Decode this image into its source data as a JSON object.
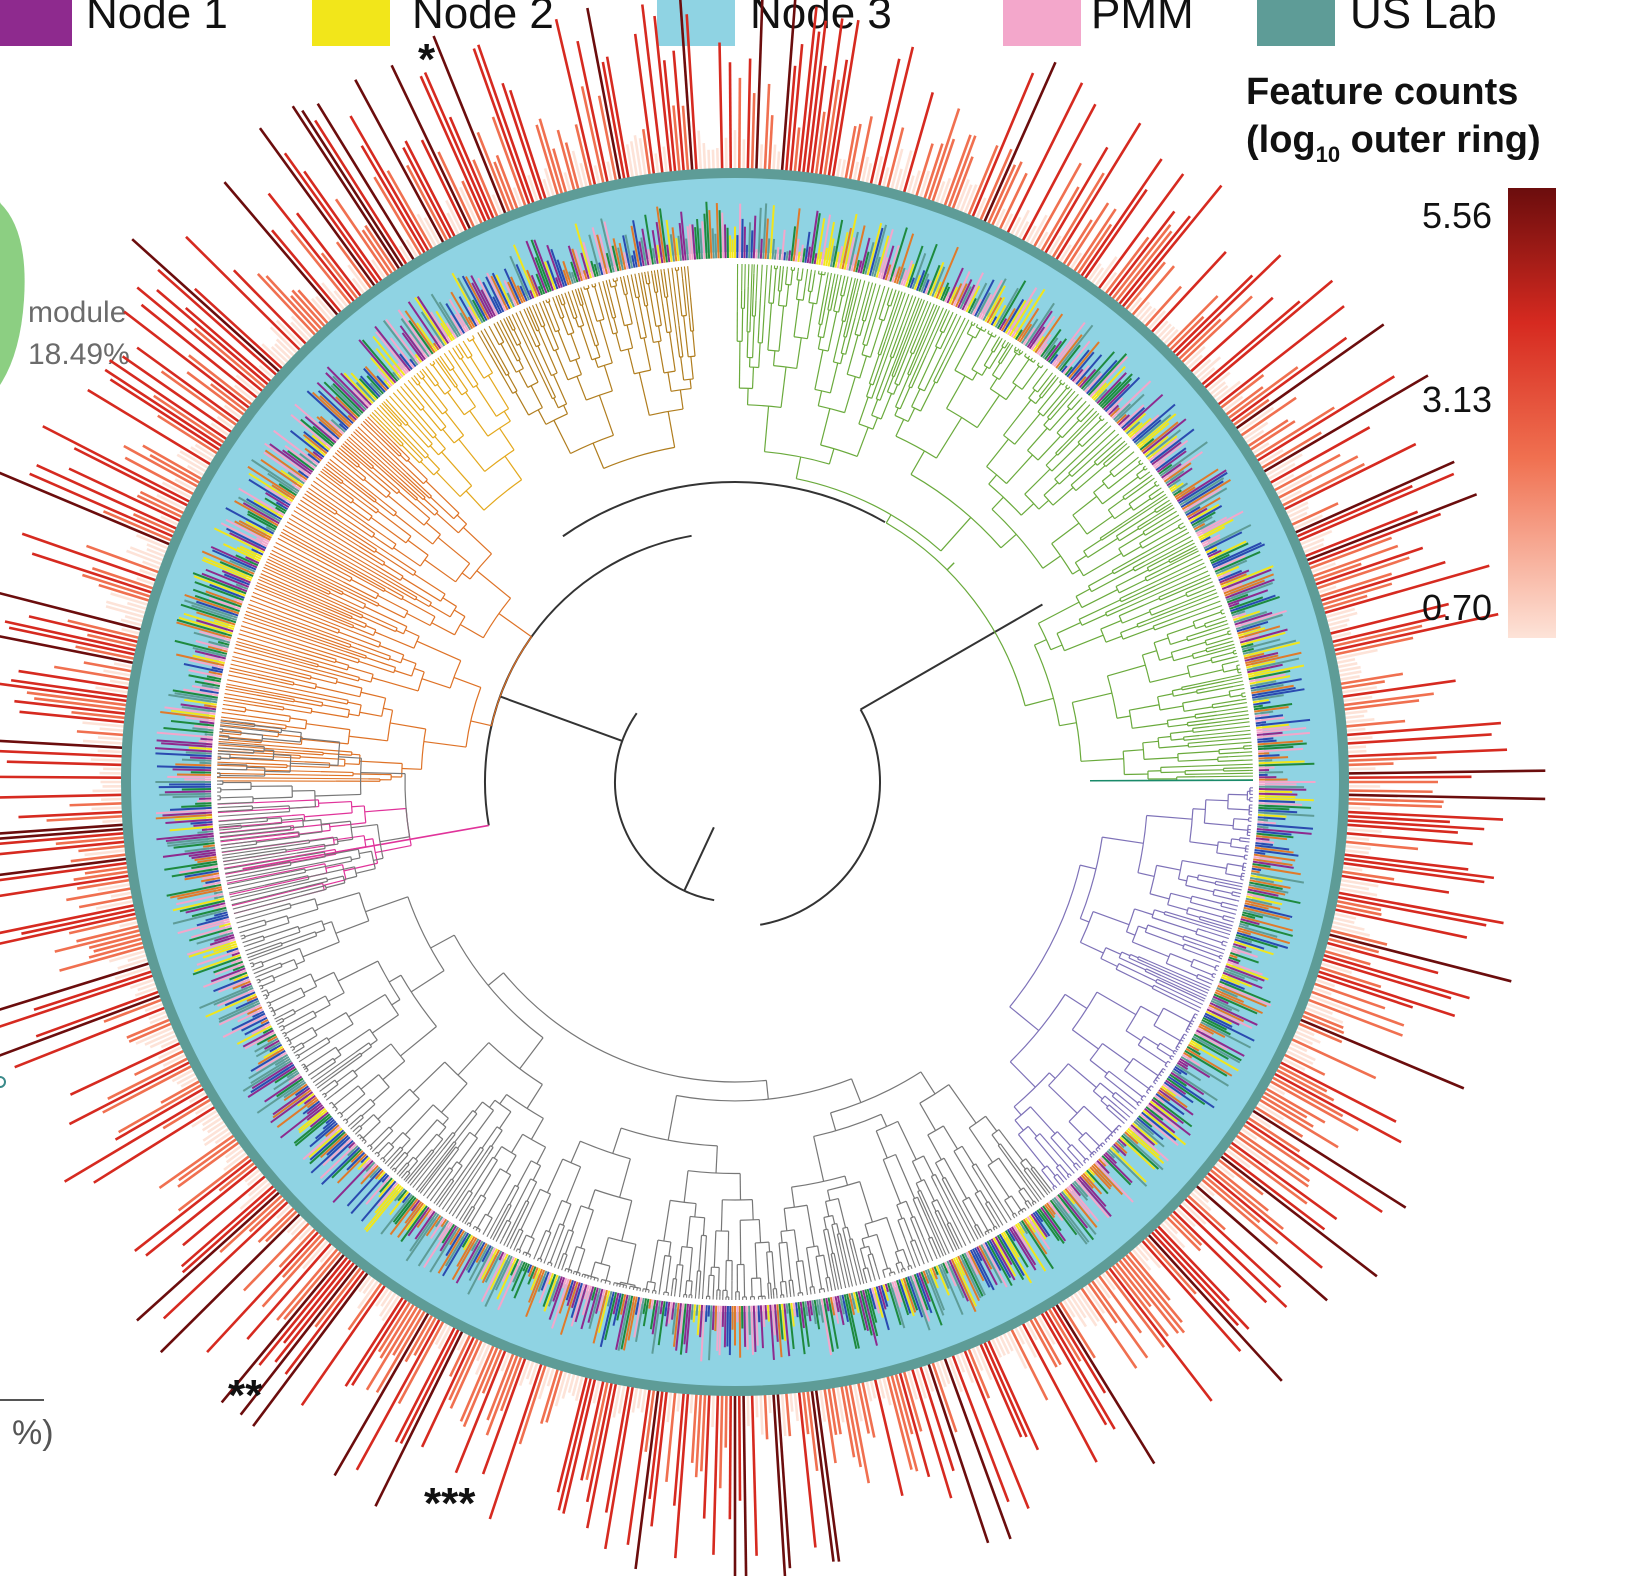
{
  "legend": {
    "items": [
      {
        "label": "Node 1",
        "color": "#8e2a8e"
      },
      {
        "label": "Node 2",
        "color": "#f2e61a"
      },
      {
        "label": "Node 3",
        "color": "#8fd3e3"
      },
      {
        "label": "PMM",
        "color": "#f3a7cb"
      },
      {
        "label": "US Lab",
        "color": "#5e9c97"
      }
    ]
  },
  "module_label": {
    "name": "module",
    "percent": "18.49%"
  },
  "partial_text": "%)",
  "color_scale": {
    "title_line1": "Feature counts",
    "title_prefix": "(log",
    "title_subscript": "10",
    "title_suffix": " outer ring)",
    "ticks": [
      "5.56",
      "3.13",
      "0.70"
    ],
    "colors": [
      "#6b0d0d",
      "#d62a20",
      "#f07050",
      "#fde3d8"
    ]
  },
  "markers": {
    "single": "*",
    "double": "**",
    "triple": "***"
  },
  "clade_colors": {
    "green": "#6aaa3c",
    "olive": "#b07d1e",
    "gold": "#e3a81c",
    "orange": "#de7226",
    "magenta": "#e0339a",
    "gray": "#777777",
    "purple": "#7e72b8",
    "teal": "#1a8a6a",
    "root": "#333333"
  },
  "ring_colors": [
    "#8e2a8e",
    "#f2e61a",
    "#1e8a3e",
    "#e07a2a",
    "#2a4ab0",
    "#5e9c97",
    "#f3a7cb"
  ]
}
